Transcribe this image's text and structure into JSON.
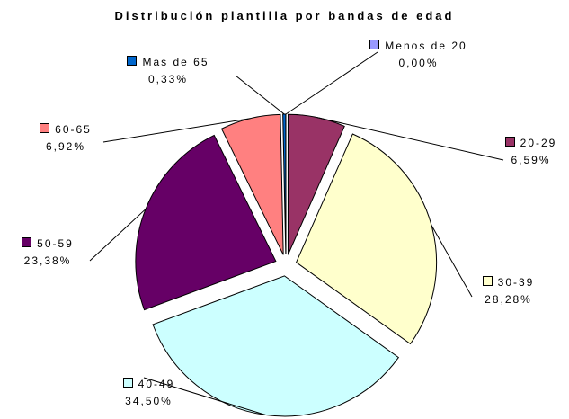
{
  "chart_data": {
    "type": "pie",
    "title": "Distribución plantilla por bandas de edad",
    "categories": [
      "Menos de 20",
      "20-29",
      "30-39",
      "40-49",
      "50-59",
      "60-65",
      "Mas de 65"
    ],
    "values": [
      0.0,
      6.59,
      28.28,
      34.5,
      23.38,
      6.92,
      0.33
    ],
    "value_labels": [
      "0,00%",
      "6,59%",
      "28,28%",
      "34,50%",
      "23,38%",
      "6,92%",
      "0,33%"
    ],
    "colors": [
      "#9999ff",
      "#993366",
      "#ffffcc",
      "#ccffff",
      "#660066",
      "#ff8080",
      "#0066cc"
    ]
  }
}
